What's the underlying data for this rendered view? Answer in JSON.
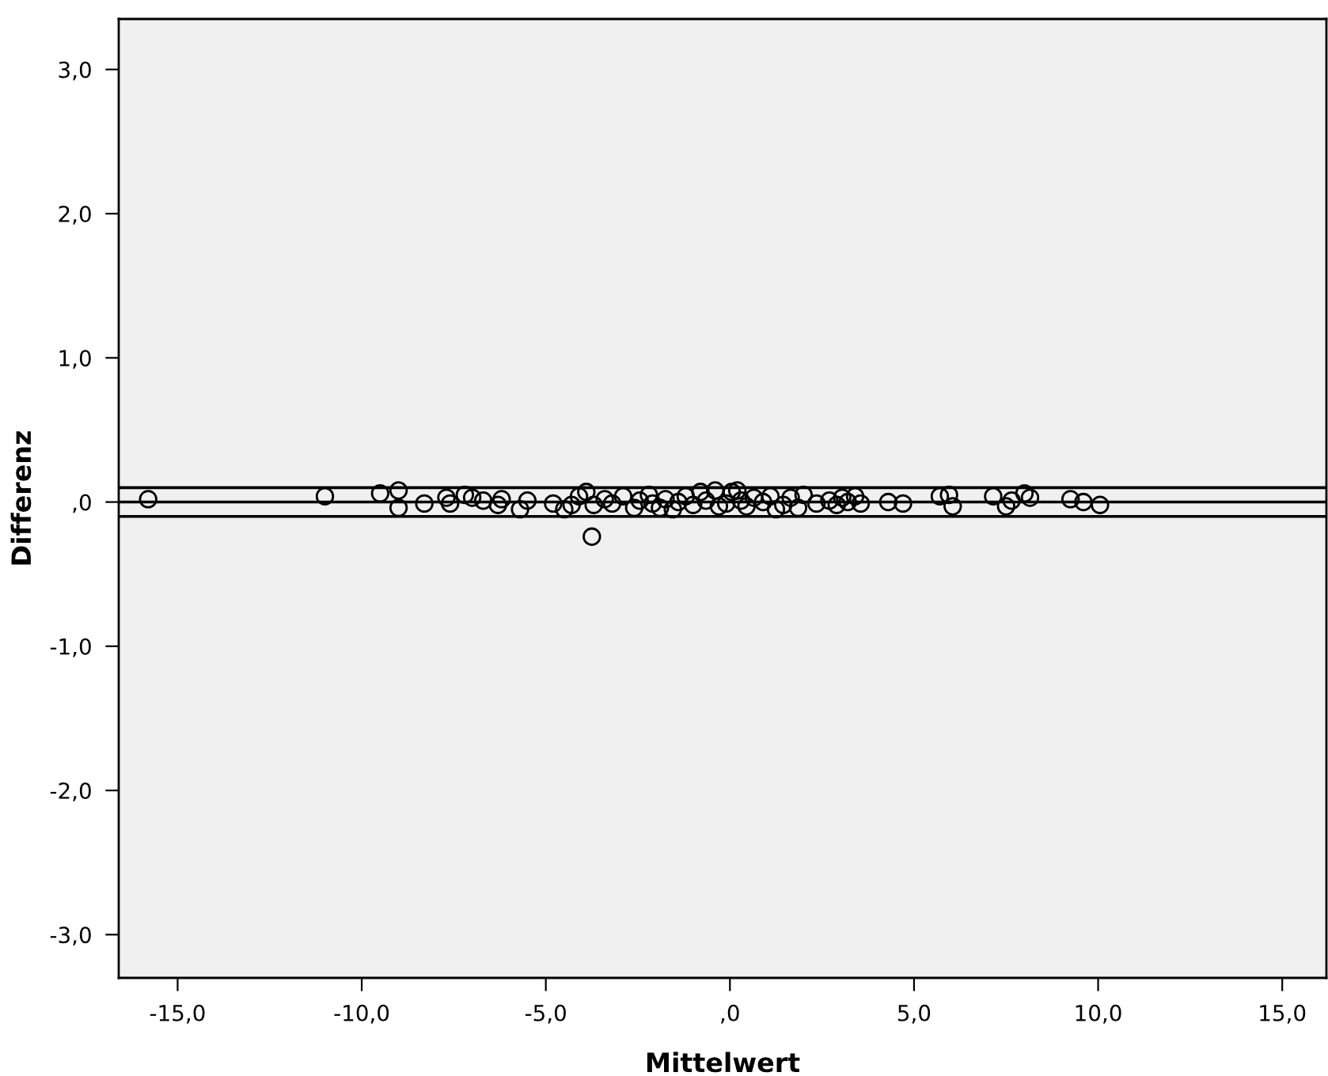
{
  "chart_data": {
    "type": "scatter",
    "xlabel": "Mittelwert",
    "ylabel": "Differenz",
    "xlim": [
      -16.6,
      16.2
    ],
    "ylim": [
      -3.3,
      3.35
    ],
    "xticks": [
      {
        "value": -15,
        "label": "-15,0"
      },
      {
        "value": -10,
        "label": "-10,0"
      },
      {
        "value": -5,
        "label": "-5,0"
      },
      {
        "value": 0,
        "label": ",0"
      },
      {
        "value": 5,
        "label": "5,0"
      },
      {
        "value": 10,
        "label": "10,0"
      },
      {
        "value": 15,
        "label": "15,0"
      }
    ],
    "yticks": [
      {
        "value": -3,
        "label": "-3,0"
      },
      {
        "value": -2,
        "label": "-2,0"
      },
      {
        "value": -1,
        "label": "-1,0"
      },
      {
        "value": 0,
        "label": ",0"
      },
      {
        "value": 1,
        "label": "1,0"
      },
      {
        "value": 2,
        "label": "2,0"
      },
      {
        "value": 3,
        "label": "3,0"
      }
    ],
    "marker": "circle",
    "grid": false,
    "ref_lines": [
      {
        "axis": "y",
        "value": 0.1,
        "color": "#000000"
      },
      {
        "axis": "y",
        "value": 0.0,
        "color": "#000000"
      },
      {
        "axis": "y",
        "value": -0.1,
        "color": "#000000"
      }
    ],
    "series": [
      {
        "color": "#000000",
        "x": [
          -15.8,
          -11.0,
          -9.5,
          -9.0,
          -9.0,
          -8.3,
          -7.7,
          -7.6,
          -7.2,
          -7.0,
          -6.7,
          -6.3,
          -6.2,
          -5.7,
          -5.5,
          -4.8,
          -4.5,
          -4.3,
          -4.1,
          -3.9,
          -3.75,
          -3.7,
          -3.4,
          -3.2,
          -2.9,
          -2.6,
          -2.45,
          -2.2,
          -2.1,
          -1.9,
          -1.75,
          -1.55,
          -1.4,
          -1.2,
          -1.0,
          -0.8,
          -0.65,
          -0.4,
          -0.3,
          -0.1,
          0.05,
          0.2,
          0.3,
          0.45,
          0.65,
          0.9,
          1.1,
          1.25,
          1.45,
          1.65,
          1.85,
          2.0,
          2.35,
          2.7,
          2.9,
          3.05,
          3.2,
          3.4,
          3.55,
          4.3,
          4.7,
          5.7,
          5.95,
          6.05,
          7.15,
          7.5,
          7.65,
          8.0,
          8.15,
          9.25,
          9.6,
          10.05
        ],
        "values": [
          0.02,
          0.04,
          0.06,
          0.08,
          -0.04,
          -0.01,
          0.03,
          -0.01,
          0.05,
          0.03,
          0.01,
          -0.02,
          0.02,
          -0.05,
          0.01,
          -0.01,
          -0.05,
          -0.02,
          0.04,
          0.07,
          -0.24,
          -0.02,
          0.02,
          -0.01,
          0.04,
          -0.04,
          0.01,
          0.05,
          -0.01,
          -0.04,
          0.02,
          -0.05,
          0.0,
          0.04,
          -0.02,
          0.07,
          0.01,
          0.08,
          -0.03,
          -0.01,
          0.07,
          0.08,
          0.01,
          -0.03,
          0.03,
          0.0,
          0.04,
          -0.05,
          -0.02,
          0.03,
          -0.04,
          0.05,
          -0.01,
          0.01,
          -0.02,
          0.03,
          0.0,
          0.04,
          -0.01,
          0.0,
          -0.01,
          0.04,
          0.05,
          -0.03,
          0.04,
          -0.03,
          0.01,
          0.06,
          0.03,
          0.02,
          0.0,
          -0.02
        ]
      }
    ]
  }
}
